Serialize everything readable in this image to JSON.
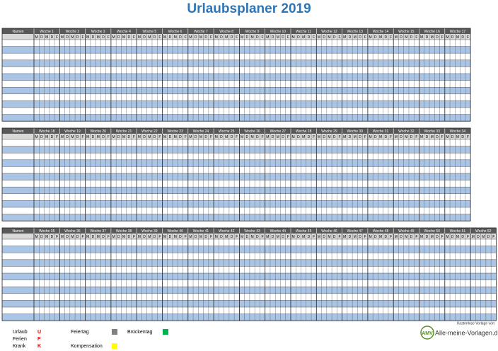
{
  "title": "Urlaubsplaner 2019",
  "name_header": "Namen",
  "days": [
    "M",
    "D",
    "M",
    "D",
    "F"
  ],
  "blocks": [
    {
      "weeks": [
        "Woche 1",
        "Woche 2",
        "Woche 3",
        "Woche 4",
        "Woche 5",
        "Woche 6",
        "Woche 7",
        "Woche 8",
        "Woche 9",
        "Woche 10",
        "Woche 11",
        "Woche 12",
        "Woche 13",
        "Woche 14",
        "Woche 15",
        "Woche 16",
        "Woche 17"
      ]
    },
    {
      "weeks": [
        "Woche 18",
        "Woche 19",
        "Woche 20",
        "Woche 21",
        "Woche 22",
        "Woche 23",
        "Woche 24",
        "Woche 25",
        "Woche 26",
        "Woche 27",
        "Woche 28",
        "Woche 29",
        "Woche 30",
        "Woche 31",
        "Woche 32",
        "Woche 33",
        "Woche 34"
      ]
    },
    {
      "weeks": [
        "Woche 35",
        "Woche 36",
        "Woche 37",
        "Woche 38",
        "Woche 39",
        "Woche 40",
        "Woche 41",
        "Woche 42",
        "Woche 43",
        "Woche 44",
        "Woche 45",
        "Woche 46",
        "Woche 47",
        "Woche 48",
        "Woche 49",
        "Woche 50",
        "Woche 51",
        "Woche 52"
      ]
    }
  ],
  "legend": {
    "codes": [
      {
        "label": "Urlaub",
        "code": "U"
      },
      {
        "label": "Ferien",
        "code": "F"
      },
      {
        "label": "Krank",
        "code": "K"
      }
    ],
    "colors": [
      {
        "label": "Feiertag",
        "color": "#808080"
      },
      {
        "label": "Brückentag",
        "color": "#00b050"
      },
      {
        "label": "Kompensation",
        "color": "#ffff00"
      }
    ]
  },
  "footer": {
    "note": "Kostenlose Vorlage von:",
    "logo_mark": "AMV",
    "logo_text": "Alle-meine-Vorlagen.de"
  }
}
